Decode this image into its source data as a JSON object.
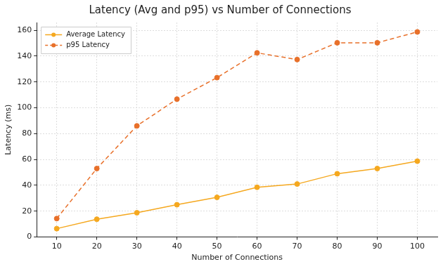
{
  "chart_data": {
    "type": "line",
    "title": "Latency (Avg and p95) vs Number of Connections",
    "x_label": "Number of Connections",
    "y_label": "Latency (ms)",
    "categories": [
      "10",
      "20",
      "30",
      "40",
      "50",
      "60",
      "70",
      "80",
      "90",
      "100"
    ],
    "series": [
      {
        "name": "Average Latency",
        "color": "#f5a81f",
        "marker": "circle",
        "line_style": "solid",
        "values": [
          6.5,
          13.8,
          18.8,
          25.0,
          30.7,
          38.5,
          41.0,
          49.0,
          53.0,
          58.7
        ]
      },
      {
        "name": "p95 Latency",
        "color": "#e8702a",
        "marker": "circle",
        "line_style": "dashed",
        "values": [
          14.3,
          53.0,
          86.0,
          106.7,
          123.3,
          142.5,
          137.3,
          150.3,
          150.3,
          158.7
        ]
      }
    ],
    "ylim": [
      0,
      166
    ],
    "yticks": [
      0,
      20,
      40,
      60,
      80,
      100,
      120,
      140,
      160
    ],
    "grid": true,
    "legend": "upper left"
  }
}
